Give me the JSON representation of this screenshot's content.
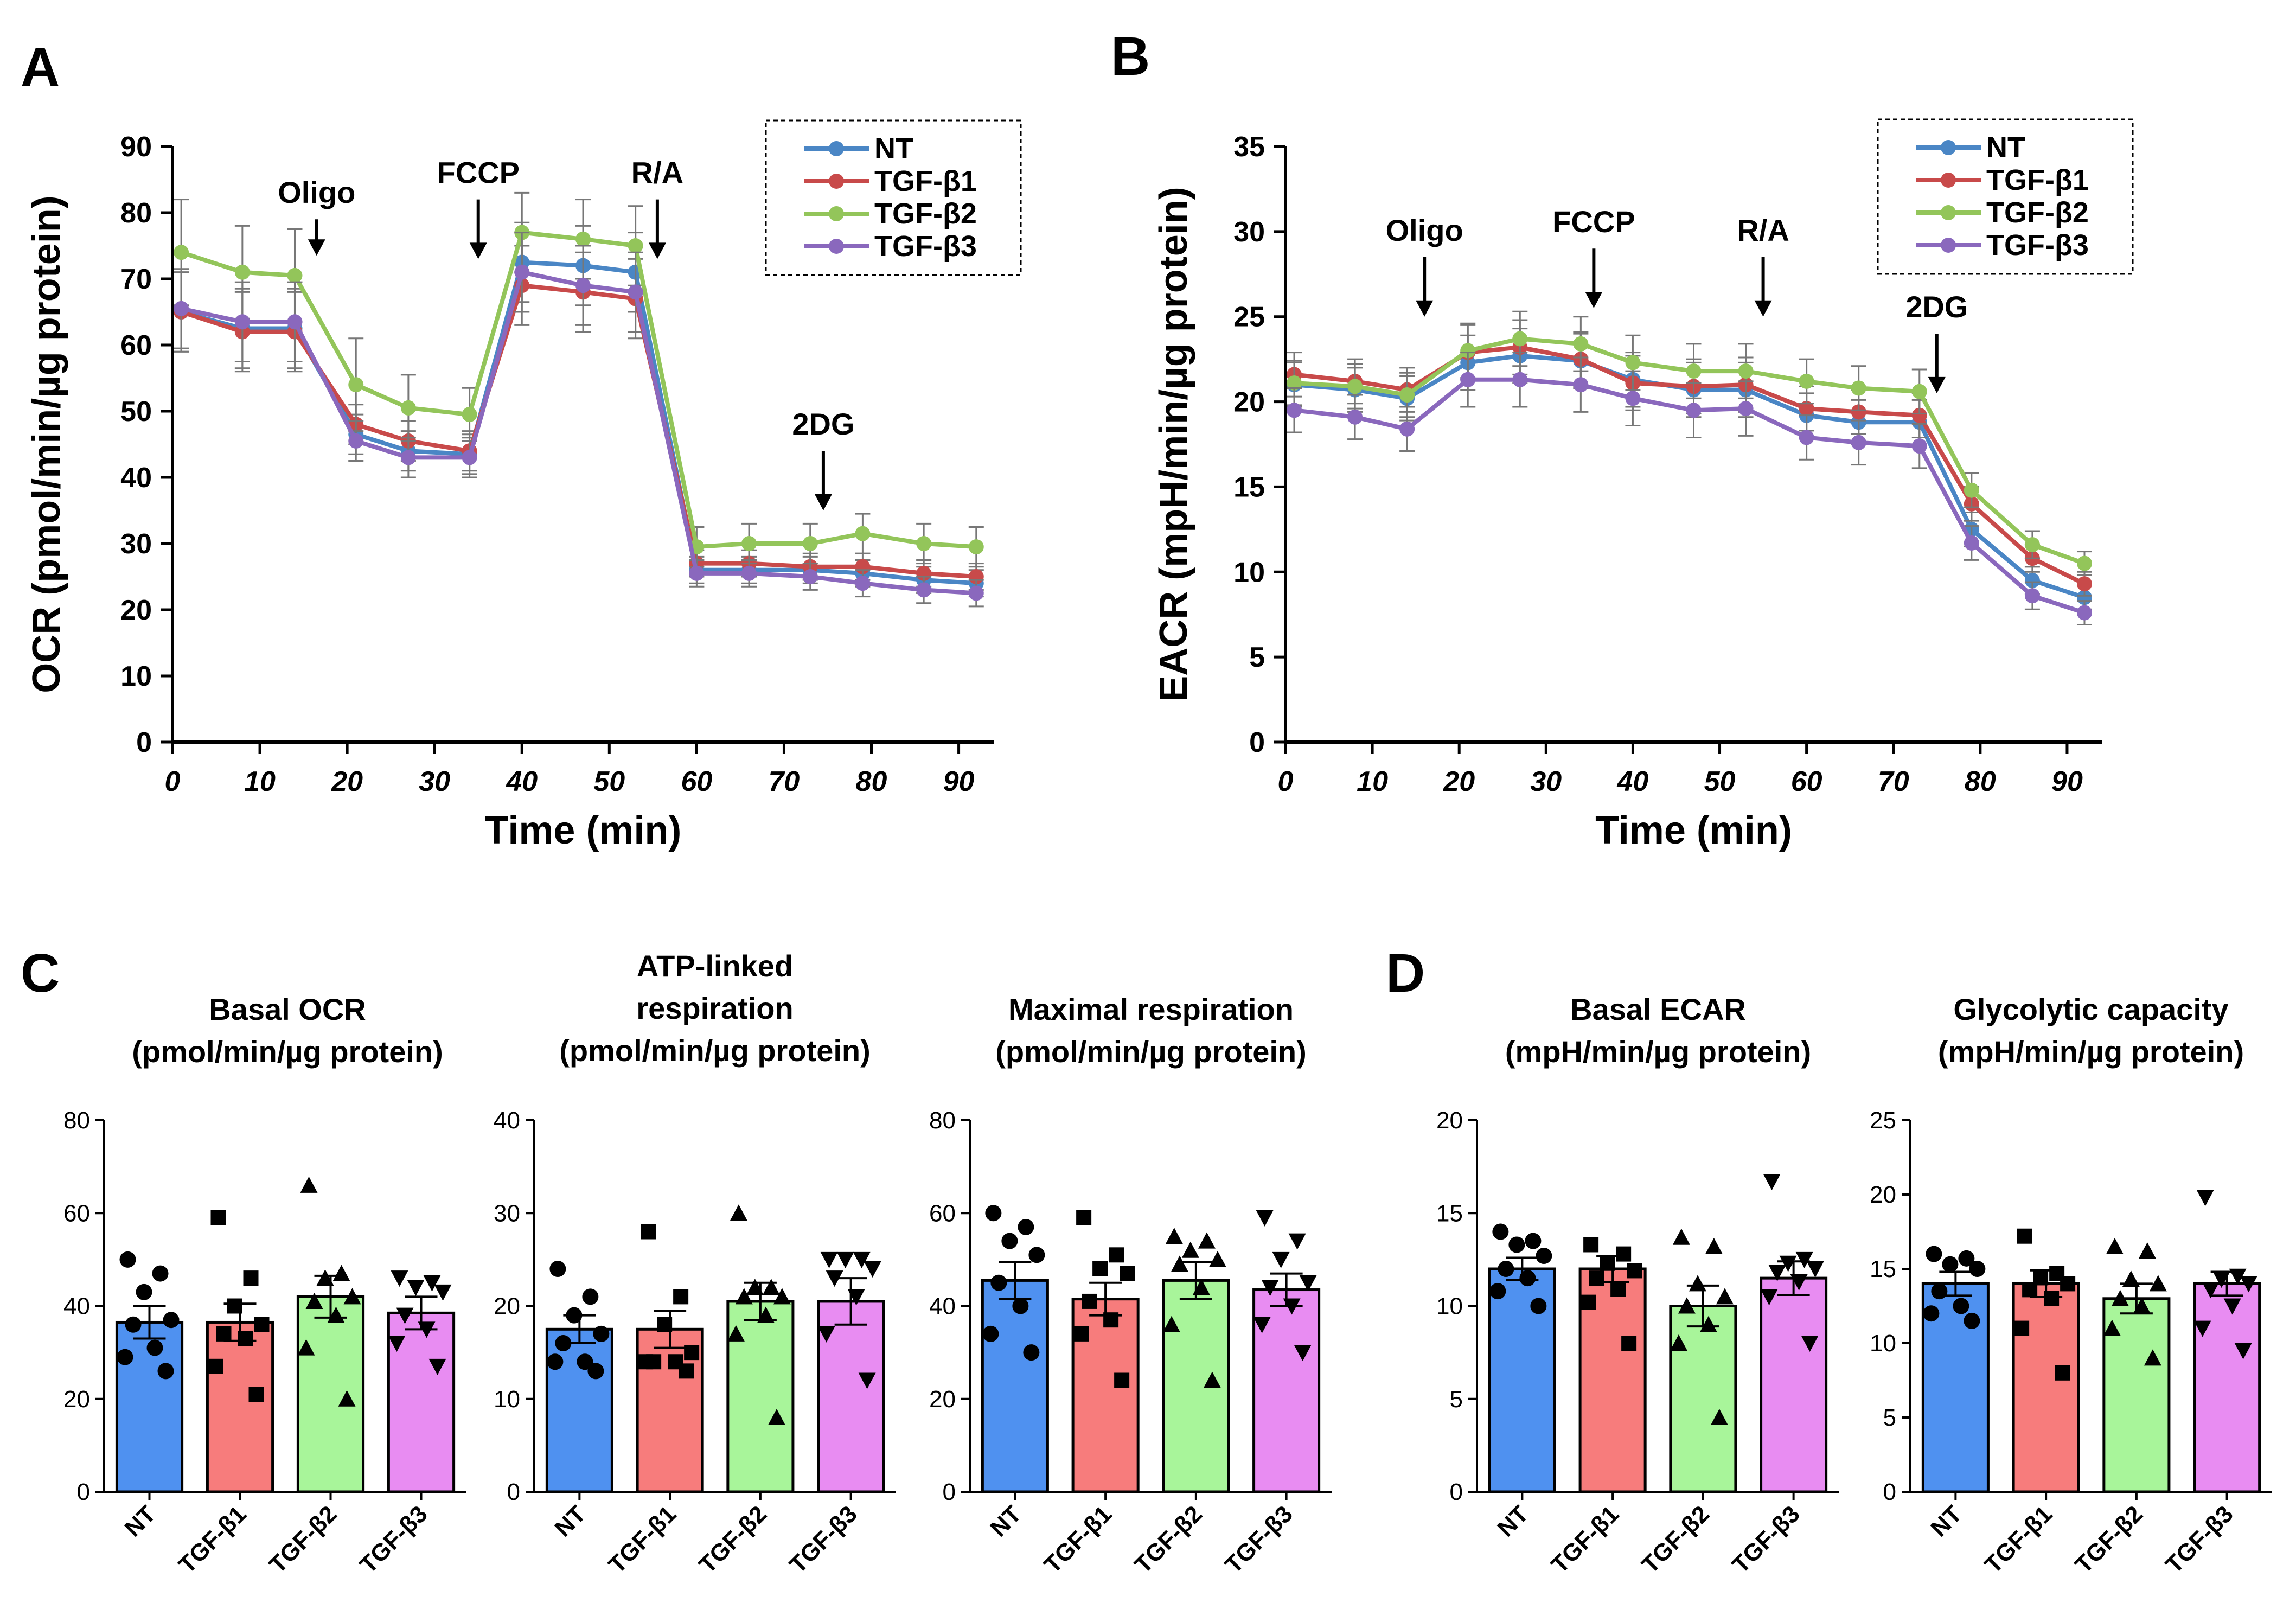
{
  "figure": {
    "panel_labels": [
      "A",
      "B",
      "C",
      "D"
    ],
    "colors": {
      "NT": "#4a86c5",
      "TGF-β1": "#c84a4a",
      "TGF-β2": "#93c55a",
      "TGF-β3": "#8a68bd",
      "bar_NT": "#4f91f0",
      "bar_TGF-β1": "#f77c7c",
      "bar_TGF-β2": "#a8f59a",
      "bar_TGF-β3": "#e88cf2"
    }
  },
  "chart_data": [
    {
      "id": "A",
      "type": "line",
      "xlabel": "Time (min)",
      "ylabel": "OCR (pmol/min/µg protein)",
      "xlim": [
        0,
        94
      ],
      "ylim": [
        0,
        90
      ],
      "xticks": [
        0,
        10,
        20,
        30,
        40,
        50,
        60,
        70,
        80,
        90
      ],
      "yticks": [
        0,
        10,
        20,
        30,
        40,
        50,
        60,
        70,
        80,
        90
      ],
      "x": [
        1,
        8,
        14,
        21,
        27,
        34,
        40,
        47,
        53,
        60,
        66,
        73,
        79,
        86,
        92
      ],
      "series": [
        {
          "name": "NT",
          "values": [
            65,
            62.5,
            62.5,
            46.5,
            44,
            43.5,
            72.5,
            72,
            71,
            26,
            26,
            26,
            25.5,
            24.5,
            24
          ],
          "errors": [
            6,
            6,
            6,
            3,
            3,
            3,
            6,
            6,
            6,
            2,
            2,
            2,
            2,
            2,
            2
          ]
        },
        {
          "name": "TGF-β1",
          "values": [
            65,
            62,
            62,
            48,
            45.5,
            44,
            69,
            68,
            67,
            27,
            27,
            26.5,
            26.5,
            25.5,
            25
          ],
          "errors": [
            6,
            6,
            6,
            3,
            3,
            3,
            6,
            6,
            6,
            2,
            2,
            2,
            2,
            2,
            2
          ]
        },
        {
          "name": "TGF-β2",
          "values": [
            74,
            71,
            70.5,
            54,
            50.5,
            49.5,
            77,
            76,
            75,
            29.5,
            30,
            30,
            31.5,
            30,
            29.5
          ],
          "errors": [
            8,
            7,
            7,
            7,
            5,
            4,
            6,
            6,
            6,
            3,
            3,
            3,
            3,
            3,
            3
          ]
        },
        {
          "name": "TGF-β3",
          "values": [
            65.5,
            63.5,
            63.5,
            45.5,
            43,
            43,
            71,
            69,
            68,
            25.5,
            25.5,
            25,
            24,
            23,
            22.5
          ],
          "errors": [
            6,
            6,
            6,
            3,
            3,
            3,
            6,
            6,
            6,
            2,
            2,
            2,
            2,
            2,
            2
          ]
        }
      ],
      "annotations": [
        {
          "text": "Oligo",
          "x": 16.5,
          "y_arrow_top": 79,
          "y_arrow_bottom": 73.5
        },
        {
          "text": "FCCP",
          "x": 35,
          "y_arrow_top": 82,
          "y_arrow_bottom": 73
        },
        {
          "text": "R/A",
          "x": 55.5,
          "y_arrow_top": 82,
          "y_arrow_bottom": 73
        },
        {
          "text": "2DG",
          "x": 74.5,
          "y_arrow_top": 44,
          "y_arrow_bottom": 35
        }
      ],
      "legend": [
        "NT",
        "TGF-β1",
        "TGF-β2",
        "TGF-β3"
      ],
      "legend_position": "top-right"
    },
    {
      "id": "B",
      "type": "line",
      "xlabel": "Time (min)",
      "ylabel": "EACR (mpH/min/µg protein)",
      "xlim": [
        0,
        94
      ],
      "ylim": [
        0,
        35
      ],
      "xticks": [
        0,
        10,
        20,
        30,
        40,
        50,
        60,
        70,
        80,
        90
      ],
      "yticks": [
        0,
        5,
        10,
        15,
        20,
        25,
        30,
        35
      ],
      "x": [
        1,
        8,
        14,
        21,
        27,
        34,
        40,
        47,
        53,
        60,
        66,
        73,
        79,
        86,
        92
      ],
      "series": [
        {
          "name": "NT",
          "values": [
            21,
            20.7,
            20.2,
            22.3,
            22.7,
            22.4,
            21.3,
            20.7,
            20.7,
            19.2,
            18.8,
            18.8,
            12.5,
            9.5,
            8.5
          ],
          "errors": [
            1.3,
            1.3,
            1.3,
            1.6,
            1.6,
            1.6,
            1.6,
            1.6,
            1.6,
            1.3,
            1.3,
            1.3,
            1,
            0.8,
            0.7
          ]
        },
        {
          "name": "TGF-β1",
          "values": [
            21.6,
            21.2,
            20.7,
            22.9,
            23.2,
            22.5,
            21.1,
            20.9,
            21,
            19.6,
            19.4,
            19.2,
            14,
            10.8,
            9.3
          ],
          "errors": [
            1.3,
            1.3,
            1.3,
            1.6,
            1.6,
            1.6,
            1.6,
            1.6,
            1.6,
            1.3,
            1.3,
            1.3,
            1,
            0.8,
            0.7
          ]
        },
        {
          "name": "TGF-β2",
          "values": [
            21.1,
            20.9,
            20.4,
            23,
            23.7,
            23.4,
            22.3,
            21.8,
            21.8,
            21.2,
            20.8,
            20.6,
            14.8,
            11.6,
            10.5
          ],
          "errors": [
            1.3,
            1.3,
            1.3,
            1.6,
            1.6,
            1.6,
            1.6,
            1.6,
            1.6,
            1.3,
            1.3,
            1.3,
            1,
            0.8,
            0.7
          ]
        },
        {
          "name": "TGF-β3",
          "values": [
            19.5,
            19.1,
            18.4,
            21.3,
            21.3,
            21,
            20.2,
            19.5,
            19.6,
            17.9,
            17.6,
            17.4,
            11.7,
            8.6,
            7.6
          ],
          "errors": [
            1.3,
            1.3,
            1.3,
            1.6,
            1.6,
            1.6,
            1.6,
            1.6,
            1.6,
            1.3,
            1.3,
            1.3,
            1,
            0.8,
            0.7
          ]
        }
      ],
      "annotations": [
        {
          "text": "Oligo",
          "x": 16,
          "y_arrow_top": 28.5,
          "y_arrow_bottom": 25
        },
        {
          "text": "FCCP",
          "x": 35.5,
          "y_arrow_top": 29,
          "y_arrow_bottom": 25.5
        },
        {
          "text": "R/A",
          "x": 55,
          "y_arrow_top": 28.5,
          "y_arrow_bottom": 25
        },
        {
          "text": "2DG",
          "x": 75,
          "y_arrow_top": 24,
          "y_arrow_bottom": 20.5
        }
      ],
      "legend": [
        "NT",
        "TGF-β1",
        "TGF-β2",
        "TGF-β3"
      ],
      "legend_position": "top-right"
    },
    {
      "id": "C1",
      "type": "bar",
      "title": [
        "Basal OCR",
        "(pmol/min/µg protein)"
      ],
      "categories": [
        "NT",
        "TGF-β1",
        "TGF-β2",
        "TGF-β3"
      ],
      "values": [
        36.5,
        36.5,
        42,
        38.5
      ],
      "errors": [
        3.5,
        4,
        4.5,
        3.5
      ],
      "ylim": [
        0,
        80
      ],
      "yticks": [
        0,
        20,
        40,
        60,
        80
      ],
      "points": [
        [
          50,
          47,
          43,
          37,
          36,
          31,
          29,
          26
        ],
        [
          59,
          46,
          40,
          36,
          34,
          33,
          27,
          21
        ],
        [
          66,
          47,
          46,
          42,
          41,
          38,
          31,
          20
        ],
        [
          46,
          45,
          44,
          43,
          38,
          35,
          32,
          27
        ]
      ]
    },
    {
      "id": "C2",
      "type": "bar",
      "title": [
        "ATP-linked",
        "respiration",
        "(pmol/min/µg protein)"
      ],
      "categories": [
        "NT",
        "TGF-β1",
        "TGF-β2",
        "TGF-β3"
      ],
      "values": [
        17.5,
        17.5,
        20.5,
        20.5
      ],
      "errors": [
        1.5,
        2,
        2,
        2.5
      ],
      "ylim": [
        0,
        40
      ],
      "yticks": [
        0,
        10,
        20,
        30,
        40
      ],
      "points": [
        [
          24,
          21,
          19,
          17,
          16,
          14,
          14,
          13
        ],
        [
          28,
          21,
          18,
          15,
          14,
          14,
          14,
          13
        ],
        [
          30,
          22,
          22,
          21,
          21,
          19,
          17,
          8
        ],
        [
          25,
          25,
          25,
          24,
          23,
          21,
          17,
          12
        ]
      ]
    },
    {
      "id": "C3",
      "type": "bar",
      "title": [
        "Maximal respiration",
        "(pmol/min/µg protein)"
      ],
      "categories": [
        "NT",
        "TGF-β1",
        "TGF-β2",
        "TGF-β3"
      ],
      "values": [
        45.5,
        41.5,
        45.5,
        43.5
      ],
      "errors": [
        4,
        3.5,
        4,
        3.5
      ],
      "ylim": [
        0,
        80
      ],
      "yticks": [
        0,
        20,
        40,
        60,
        80
      ],
      "points": [
        [
          60,
          57,
          54,
          51,
          45,
          40,
          34,
          30
        ],
        [
          59,
          51,
          48,
          47,
          41,
          37,
          34,
          24
        ],
        [
          55,
          54,
          52,
          50,
          49,
          44,
          36,
          24
        ],
        [
          59,
          54,
          50,
          45,
          44,
          40,
          36,
          30
        ]
      ]
    },
    {
      "id": "D1",
      "type": "bar",
      "title": [
        "Basal ECAR",
        "(mpH/min/µg protein)"
      ],
      "categories": [
        "NT",
        "TGF-β1",
        "TGF-β2",
        "TGF-β3"
      ],
      "values": [
        12,
        12,
        10,
        11.5
      ],
      "errors": [
        0.6,
        0.7,
        1.1,
        0.9
      ],
      "ylim": [
        0,
        20
      ],
      "yticks": [
        0,
        5,
        10,
        15,
        20
      ],
      "points": [
        [
          14,
          13.5,
          13.3,
          12.7,
          12,
          11.5,
          10.8,
          10
        ],
        [
          13.3,
          12.8,
          12.3,
          11.9,
          11.5,
          10.9,
          10.2,
          8
        ],
        [
          13.7,
          13.2,
          11.2,
          10.5,
          10,
          9,
          8,
          4
        ],
        [
          16.7,
          12.5,
          12.3,
          12,
          11.8,
          11.3,
          10.5,
          8
        ]
      ]
    },
    {
      "id": "D2",
      "type": "bar",
      "title": [
        "Glycolytic capacity",
        "(mpH/min/µg protein)"
      ],
      "categories": [
        "NT",
        "TGF-β1",
        "TGF-β2",
        "TGF-β3"
      ],
      "values": [
        14,
        14,
        13,
        14
      ],
      "errors": [
        0.8,
        0.9,
        1,
        0.8
      ],
      "ylim": [
        0,
        25
      ],
      "yticks": [
        0,
        5,
        10,
        15,
        20,
        25
      ],
      "points": [
        [
          16,
          15.7,
          15.3,
          15,
          13.5,
          12.5,
          12,
          11.5
        ],
        [
          17.2,
          14.7,
          14.4,
          14,
          13.6,
          13,
          11,
          8
        ],
        [
          16.5,
          16.2,
          14.3,
          14,
          13,
          12.5,
          11,
          9
        ],
        [
          19.8,
          14.5,
          14.3,
          14,
          13.6,
          12.5,
          11,
          9.5
        ]
      ]
    }
  ]
}
